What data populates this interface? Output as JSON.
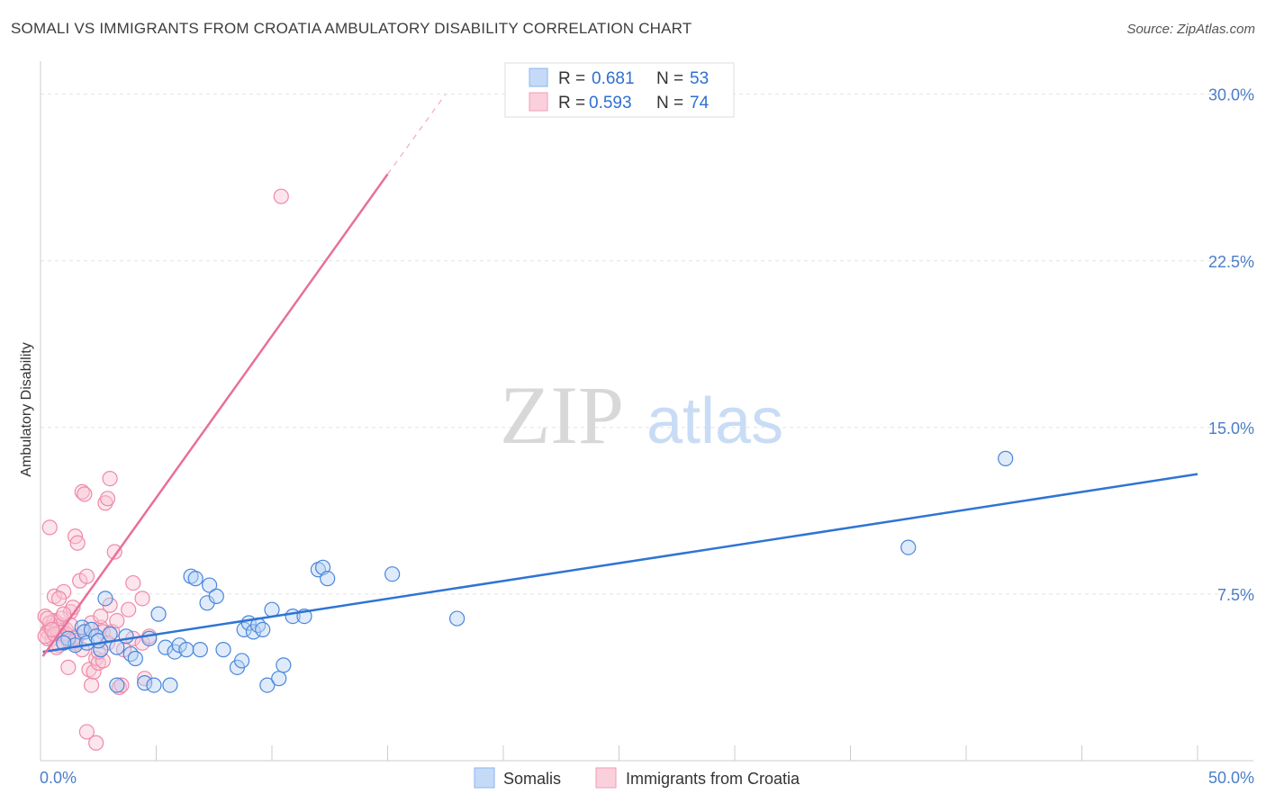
{
  "header": {
    "title": "SOMALI VS IMMIGRANTS FROM CROATIA AMBULATORY DISABILITY CORRELATION CHART",
    "source": "Source: ZipAtlas.com"
  },
  "watermark": {
    "zip": "ZIP",
    "atlas": "atlas"
  },
  "legend": {
    "r_label": "R =",
    "n_label": "N =",
    "entries": [
      {
        "r": "0.681",
        "n": "53",
        "color": "#8ab4f0",
        "fill": "#c5daf7"
      },
      {
        "r": "0.593",
        "n": "74",
        "color": "#f29bb5",
        "fill": "#fbd0dd"
      }
    ]
  },
  "chart_data": {
    "type": "scatter",
    "xlabel": "",
    "ylabel": "Ambulatory Disability",
    "xlim": [
      0,
      50
    ],
    "ylim": [
      0,
      31
    ],
    "x_tick_labels": [
      {
        "value": 0,
        "label": "0.0%"
      },
      {
        "value": 50,
        "label": "50.0%"
      }
    ],
    "y_tick_labels": [
      {
        "value": 7.5,
        "label": "7.5%"
      },
      {
        "value": 15,
        "label": "15.0%"
      },
      {
        "value": 22.5,
        "label": "22.5%"
      },
      {
        "value": 30,
        "label": "30.0%"
      }
    ],
    "x_minor_ticks": [
      0,
      5,
      10,
      15,
      20,
      25,
      30,
      35,
      40,
      45,
      50
    ],
    "grid": true,
    "legend_position": "top-center",
    "series": [
      {
        "name": "Somalis",
        "color": "#4a86dc",
        "fill": "#b9d3f5",
        "line_color": "#2f74d4",
        "trend": {
          "x0": 0.1,
          "y0": 4.9,
          "x1": 50,
          "y1": 12.9
        },
        "points": [
          [
            1.2,
            5.5
          ],
          [
            1.5,
            5.2
          ],
          [
            1.8,
            6.0
          ],
          [
            1.9,
            5.8
          ],
          [
            2.0,
            5.3
          ],
          [
            2.2,
            5.9
          ],
          [
            2.4,
            5.6
          ],
          [
            2.6,
            5.0
          ],
          [
            2.8,
            7.3
          ],
          [
            2.5,
            5.4
          ],
          [
            3.0,
            5.7
          ],
          [
            3.3,
            5.1
          ],
          [
            3.7,
            5.6
          ],
          [
            3.9,
            4.8
          ],
          [
            4.1,
            4.6
          ],
          [
            4.5,
            3.5
          ],
          [
            4.7,
            5.5
          ],
          [
            4.9,
            3.4
          ],
          [
            5.1,
            6.6
          ],
          [
            5.4,
            5.1
          ],
          [
            5.6,
            3.4
          ],
          [
            5.8,
            4.9
          ],
          [
            6.0,
            5.2
          ],
          [
            6.3,
            5.0
          ],
          [
            6.5,
            8.3
          ],
          [
            6.7,
            8.2
          ],
          [
            6.9,
            5.0
          ],
          [
            7.2,
            7.1
          ],
          [
            7.3,
            7.9
          ],
          [
            7.6,
            7.4
          ],
          [
            7.9,
            5.0
          ],
          [
            8.5,
            4.2
          ],
          [
            8.7,
            4.5
          ],
          [
            8.8,
            5.9
          ],
          [
            9.0,
            6.2
          ],
          [
            9.2,
            5.8
          ],
          [
            9.4,
            6.1
          ],
          [
            9.6,
            5.9
          ],
          [
            9.8,
            3.4
          ],
          [
            10.0,
            6.8
          ],
          [
            10.3,
            3.7
          ],
          [
            10.5,
            4.3
          ],
          [
            10.9,
            6.5
          ],
          [
            11.4,
            6.5
          ],
          [
            12.0,
            8.6
          ],
          [
            12.2,
            8.7
          ],
          [
            12.4,
            8.2
          ],
          [
            15.2,
            8.4
          ],
          [
            18.0,
            6.4
          ],
          [
            37.5,
            9.6
          ],
          [
            41.7,
            13.6
          ],
          [
            3.3,
            3.4
          ],
          [
            1.0,
            5.3
          ]
        ]
      },
      {
        "name": "Immigrants from Croatia",
        "color": "#ee8aa8",
        "fill": "#f9c5d4",
        "line_color": "#e8709a",
        "trend": {
          "x0": 0.1,
          "y0": 4.7,
          "x1": 15.0,
          "y1": 26.4
        },
        "trend_dashed": {
          "x0": 15.0,
          "y0": 26.4,
          "x1": 17.5,
          "y1": 30.0
        },
        "points": [
          [
            0.2,
            6.5
          ],
          [
            0.3,
            5.8
          ],
          [
            0.4,
            6.0
          ],
          [
            0.5,
            5.5
          ],
          [
            0.6,
            7.4
          ],
          [
            0.7,
            6.2
          ],
          [
            0.8,
            5.2
          ],
          [
            0.9,
            6.1
          ],
          [
            0.4,
            10.5
          ],
          [
            1.0,
            7.6
          ],
          [
            1.1,
            5.9
          ],
          [
            1.2,
            4.2
          ],
          [
            1.3,
            6.7
          ],
          [
            1.4,
            5.5
          ],
          [
            1.5,
            10.1
          ],
          [
            1.6,
            9.8
          ],
          [
            1.7,
            8.1
          ],
          [
            1.8,
            12.1
          ],
          [
            1.9,
            12.0
          ],
          [
            2.0,
            8.3
          ],
          [
            1.5,
            5.3
          ],
          [
            1.8,
            5.0
          ],
          [
            2.1,
            4.1
          ],
          [
            2.2,
            3.4
          ],
          [
            2.3,
            4.0
          ],
          [
            2.4,
            4.6
          ],
          [
            2.5,
            4.4
          ],
          [
            2.6,
            6.0
          ],
          [
            2.7,
            5.8
          ],
          [
            2.8,
            11.6
          ],
          [
            2.9,
            11.8
          ],
          [
            3.0,
            12.7
          ],
          [
            3.1,
            5.8
          ],
          [
            3.2,
            9.4
          ],
          [
            3.3,
            6.3
          ],
          [
            3.4,
            3.3
          ],
          [
            3.5,
            3.4
          ],
          [
            3.8,
            6.8
          ],
          [
            4.0,
            8.0
          ],
          [
            2.7,
            4.5
          ],
          [
            2.0,
            1.3
          ],
          [
            2.4,
            0.8
          ],
          [
            0.3,
            5.5
          ],
          [
            0.5,
            6.0
          ],
          [
            0.6,
            6.3
          ],
          [
            0.2,
            5.6
          ],
          [
            0.7,
            5.9
          ],
          [
            0.9,
            6.4
          ],
          [
            1.1,
            5.7
          ],
          [
            1.3,
            6.1
          ],
          [
            1.4,
            6.9
          ],
          [
            0.8,
            7.3
          ],
          [
            1.0,
            6.6
          ],
          [
            1.2,
            5.4
          ],
          [
            0.4,
            6.2
          ],
          [
            0.6,
            5.7
          ],
          [
            0.3,
            6.4
          ],
          [
            0.5,
            5.9
          ],
          [
            1.6,
            5.6
          ],
          [
            1.9,
            5.8
          ],
          [
            2.2,
            6.2
          ],
          [
            2.5,
            4.9
          ],
          [
            2.6,
            6.5
          ],
          [
            2.9,
            5.3
          ],
          [
            3.0,
            7.0
          ],
          [
            3.6,
            5.0
          ],
          [
            4.5,
            3.7
          ],
          [
            4.0,
            5.5
          ],
          [
            4.4,
            5.3
          ],
          [
            4.7,
            5.6
          ],
          [
            0.7,
            5.1
          ],
          [
            1.5,
            5.4
          ],
          [
            4.4,
            7.3
          ],
          [
            10.4,
            25.4
          ]
        ]
      }
    ]
  }
}
